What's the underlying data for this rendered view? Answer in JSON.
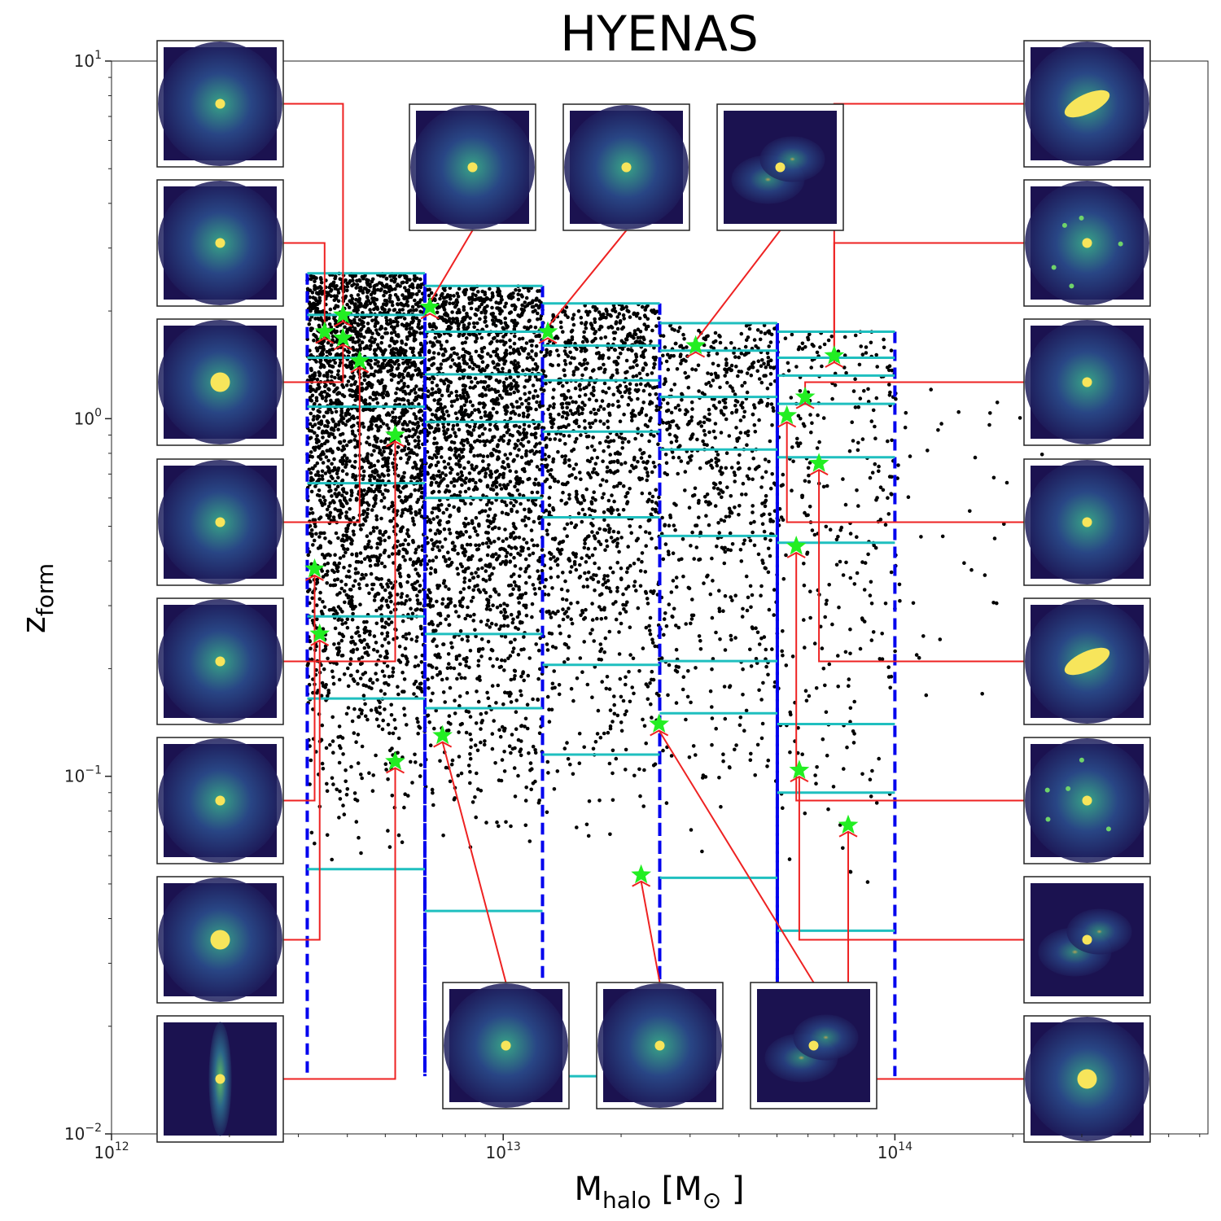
{
  "chart_data": {
    "type": "scatter",
    "title": "HYENAS",
    "xlabel_main": "M",
    "xlabel_sub": "halo",
    "xlabel_unit_open": " [M",
    "xlabel_unit_sub": "⊙",
    "xlabel_unit_close": " ]",
    "ylabel_main": "z",
    "ylabel_sub": "form",
    "x_scale": "log",
    "y_scale": "log",
    "xlim": [
      1000000000000.0,
      630000000000000.0
    ],
    "ylim": [
      0.01,
      10
    ],
    "x_ticks": [
      {
        "base": "10",
        "exp": "12",
        "value": 1000000000000.0
      },
      {
        "base": "10",
        "exp": "13",
        "value": 10000000000000.0
      },
      {
        "base": "10",
        "exp": "14",
        "value": 100000000000000.0
      }
    ],
    "y_ticks": [
      {
        "base": "10",
        "exp": "1",
        "value": 10
      },
      {
        "base": "10",
        "exp": "0",
        "value": 1
      },
      {
        "base": "10",
        "exp": "−1",
        "value": 0.1
      },
      {
        "base": "10",
        "exp": "−2",
        "value": 0.01
      }
    ],
    "grid": false,
    "colors": {
      "points": "#000000",
      "bins": "#0000ee",
      "percentiles": "#1fbfbf",
      "selected": "#22ee22",
      "connector": "#ee2222"
    },
    "mass_bins": [
      {
        "xmin": 3160000000000.0,
        "xmax": 6310000000000.0,
        "zmax": 2.55
      },
      {
        "xmin": 6310000000000.0,
        "xmax": 12600000000000.0,
        "zmax": 2.35
      },
      {
        "xmin": 12600000000000.0,
        "xmax": 25100000000000.0,
        "zmax": 2.1
      },
      {
        "xmin": 25100000000000.0,
        "xmax": 50100000000000.0,
        "zmax": 1.85
      },
      {
        "xmin": 50100000000000.0,
        "xmax": 100000000000000.0,
        "zmax": 1.75
      }
    ],
    "percentile_levels": [
      {
        "xmin": 3160000000000.0,
        "xmax": 6310000000000.0,
        "z": [
          2.55,
          1.95,
          1.48,
          1.08,
          0.66,
          0.28,
          0.165,
          0.055
        ]
      },
      {
        "xmin": 6310000000000.0,
        "xmax": 12600000000000.0,
        "z": [
          2.35,
          1.75,
          1.33,
          0.98,
          0.6,
          0.25,
          0.155,
          0.042
        ]
      },
      {
        "xmin": 12600000000000.0,
        "xmax": 25100000000000.0,
        "z": [
          2.1,
          1.6,
          1.28,
          0.92,
          0.53,
          0.205,
          0.115,
          0.0145
        ]
      },
      {
        "xmin": 25100000000000.0,
        "xmax": 50100000000000.0,
        "z": [
          1.85,
          1.55,
          1.15,
          0.82,
          0.47,
          0.21,
          0.15,
          0.052
        ]
      },
      {
        "xmin": 50100000000000.0,
        "xmax": 100000000000000.0,
        "z": [
          1.75,
          1.48,
          1.32,
          1.1,
          0.78,
          0.45,
          0.14,
          0.09,
          0.037
        ]
      }
    ],
    "selected_haloes": [
      {
        "x": 3300000000000.0,
        "y": 0.38
      },
      {
        "x": 3400000000000.0,
        "y": 0.25
      },
      {
        "x": 3500000000000.0,
        "y": 1.75
      },
      {
        "x": 3900000000000.0,
        "y": 1.95
      },
      {
        "x": 3900000000000.0,
        "y": 1.68
      },
      {
        "x": 4300000000000.0,
        "y": 1.45
      },
      {
        "x": 5300000000000.0,
        "y": 0.9
      },
      {
        "x": 5300000000000.0,
        "y": 0.11
      },
      {
        "x": 6500000000000.0,
        "y": 2.05
      },
      {
        "x": 7000000000000.0,
        "y": 0.13
      },
      {
        "x": 13000000000000.0,
        "y": 1.75
      },
      {
        "x": 22500000000000.0,
        "y": 0.053
      },
      {
        "x": 25000000000000.0,
        "y": 0.14
      },
      {
        "x": 31000000000000.0,
        "y": 1.6
      },
      {
        "x": 53000000000000.0,
        "y": 1.02
      },
      {
        "x": 56000000000000.0,
        "y": 0.44
      },
      {
        "x": 57000000000000.0,
        "y": 0.104
      },
      {
        "x": 59000000000000.0,
        "y": 1.15
      },
      {
        "x": 64000000000000.0,
        "y": 0.75
      },
      {
        "x": 70000000000000.0,
        "y": 1.5
      },
      {
        "x": 76000000000000.0,
        "y": 0.073
      }
    ],
    "scatter_note": "approx. 10,000 haloes; dense near z≈0.5–2 at low mass, sparse beyond 10^14",
    "scatter_density": [
      {
        "xmin": 3160000000000.0,
        "xmax": 6310000000000.0,
        "n": 2600,
        "zmin": 0.055,
        "zmax": 2.55
      },
      {
        "xmin": 6310000000000.0,
        "xmax": 12600000000000.0,
        "n": 1900,
        "zmin": 0.055,
        "zmax": 2.35
      },
      {
        "xmin": 12600000000000.0,
        "xmax": 25100000000000.0,
        "n": 1100,
        "zmin": 0.06,
        "zmax": 2.1
      },
      {
        "xmin": 25100000000000.0,
        "xmax": 50100000000000.0,
        "n": 650,
        "zmin": 0.06,
        "zmax": 1.85
      },
      {
        "xmin": 50100000000000.0,
        "xmax": 100000000000000.0,
        "n": 300,
        "zmin": 0.04,
        "zmax": 1.75
      },
      {
        "xmin": 100000000000000.0,
        "xmax": 350000000000000.0,
        "n": 55,
        "zmin": 0.08,
        "zmax": 1.3
      }
    ]
  }
}
